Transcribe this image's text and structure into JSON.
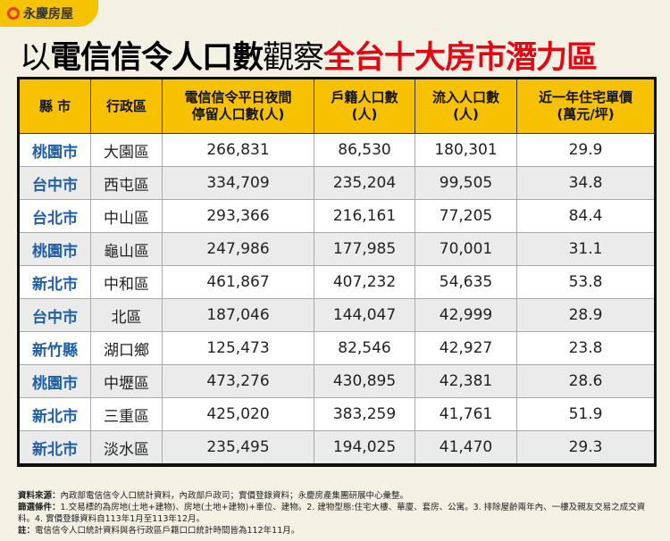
{
  "brand": "永慶房屋",
  "title": {
    "part1": "以",
    "part2": "電信信令人口數",
    "part3": "觀察",
    "part4": "全台十大房市潛力區"
  },
  "headers": [
    "縣 市",
    "行政區",
    "電信信令平日夜間停留人口數(人)",
    "戶籍人口數(人)",
    "流入人口數(人)",
    "近一年住宅單價(萬元/坪)"
  ],
  "header_lines": [
    [
      "縣 市"
    ],
    [
      "行政區"
    ],
    [
      "電信信令平日夜間",
      "停留人口數(人)"
    ],
    [
      "戶籍人口數",
      "(人)"
    ],
    [
      "流入人口數",
      "(人)"
    ],
    [
      "近一年住宅單價",
      "(萬元/坪)"
    ]
  ],
  "rows": [
    [
      "桃園市",
      "大園區",
      "266,831",
      "86,530",
      "180,301",
      "29.9"
    ],
    [
      "台中市",
      "西屯區",
      "334,709",
      "235,204",
      "99,505",
      "34.8"
    ],
    [
      "台北市",
      "中山區",
      "293,366",
      "216,161",
      "77,205",
      "84.4"
    ],
    [
      "桃園市",
      "龜山區",
      "247,986",
      "177,985",
      "70,001",
      "31.1"
    ],
    [
      "新北市",
      "中和區",
      "461,867",
      "407,232",
      "54,635",
      "53.8"
    ],
    [
      "台中市",
      "北區",
      "187,046",
      "144,047",
      "42,999",
      "28.9"
    ],
    [
      "新竹縣",
      "湖口鄉",
      "125,473",
      "82,546",
      "42,927",
      "23.8"
    ],
    [
      "桃園市",
      "中壢區",
      "473,276",
      "430,895",
      "42,381",
      "28.6"
    ],
    [
      "新北市",
      "三重區",
      "425,020",
      "383,259",
      "41,761",
      "51.9"
    ],
    [
      "新北市",
      "淡水區",
      "235,495",
      "194,025",
      "41,470",
      "29.3"
    ]
  ],
  "notes": [
    {
      "label": "資料來源：",
      "text": "內政部電信信令人口統計資料，內政部戶政司；實價登錄資料；永慶房產集團研展中心彙整。"
    },
    {
      "label": "篩選條件：",
      "text": "1.交易標的為房地(土地+建物)、房地(土地+建物)+車位、建物。2. 建物型態:住宅大樓、華廈、套房、公寓。3. 排除屋齡兩年內、一樓及親友交易之成交資料。4. 實價登錄資料自113年1月至113年12月。"
    },
    {
      "label": "註：",
      "text": "電信信令人口統計資料與各行政區戶籍口口統計時間皆為112年11月。"
    }
  ],
  "colors": {
    "accent": "#f6c200",
    "title_red": "#e30613",
    "county_blue": "#1f5fa8"
  }
}
